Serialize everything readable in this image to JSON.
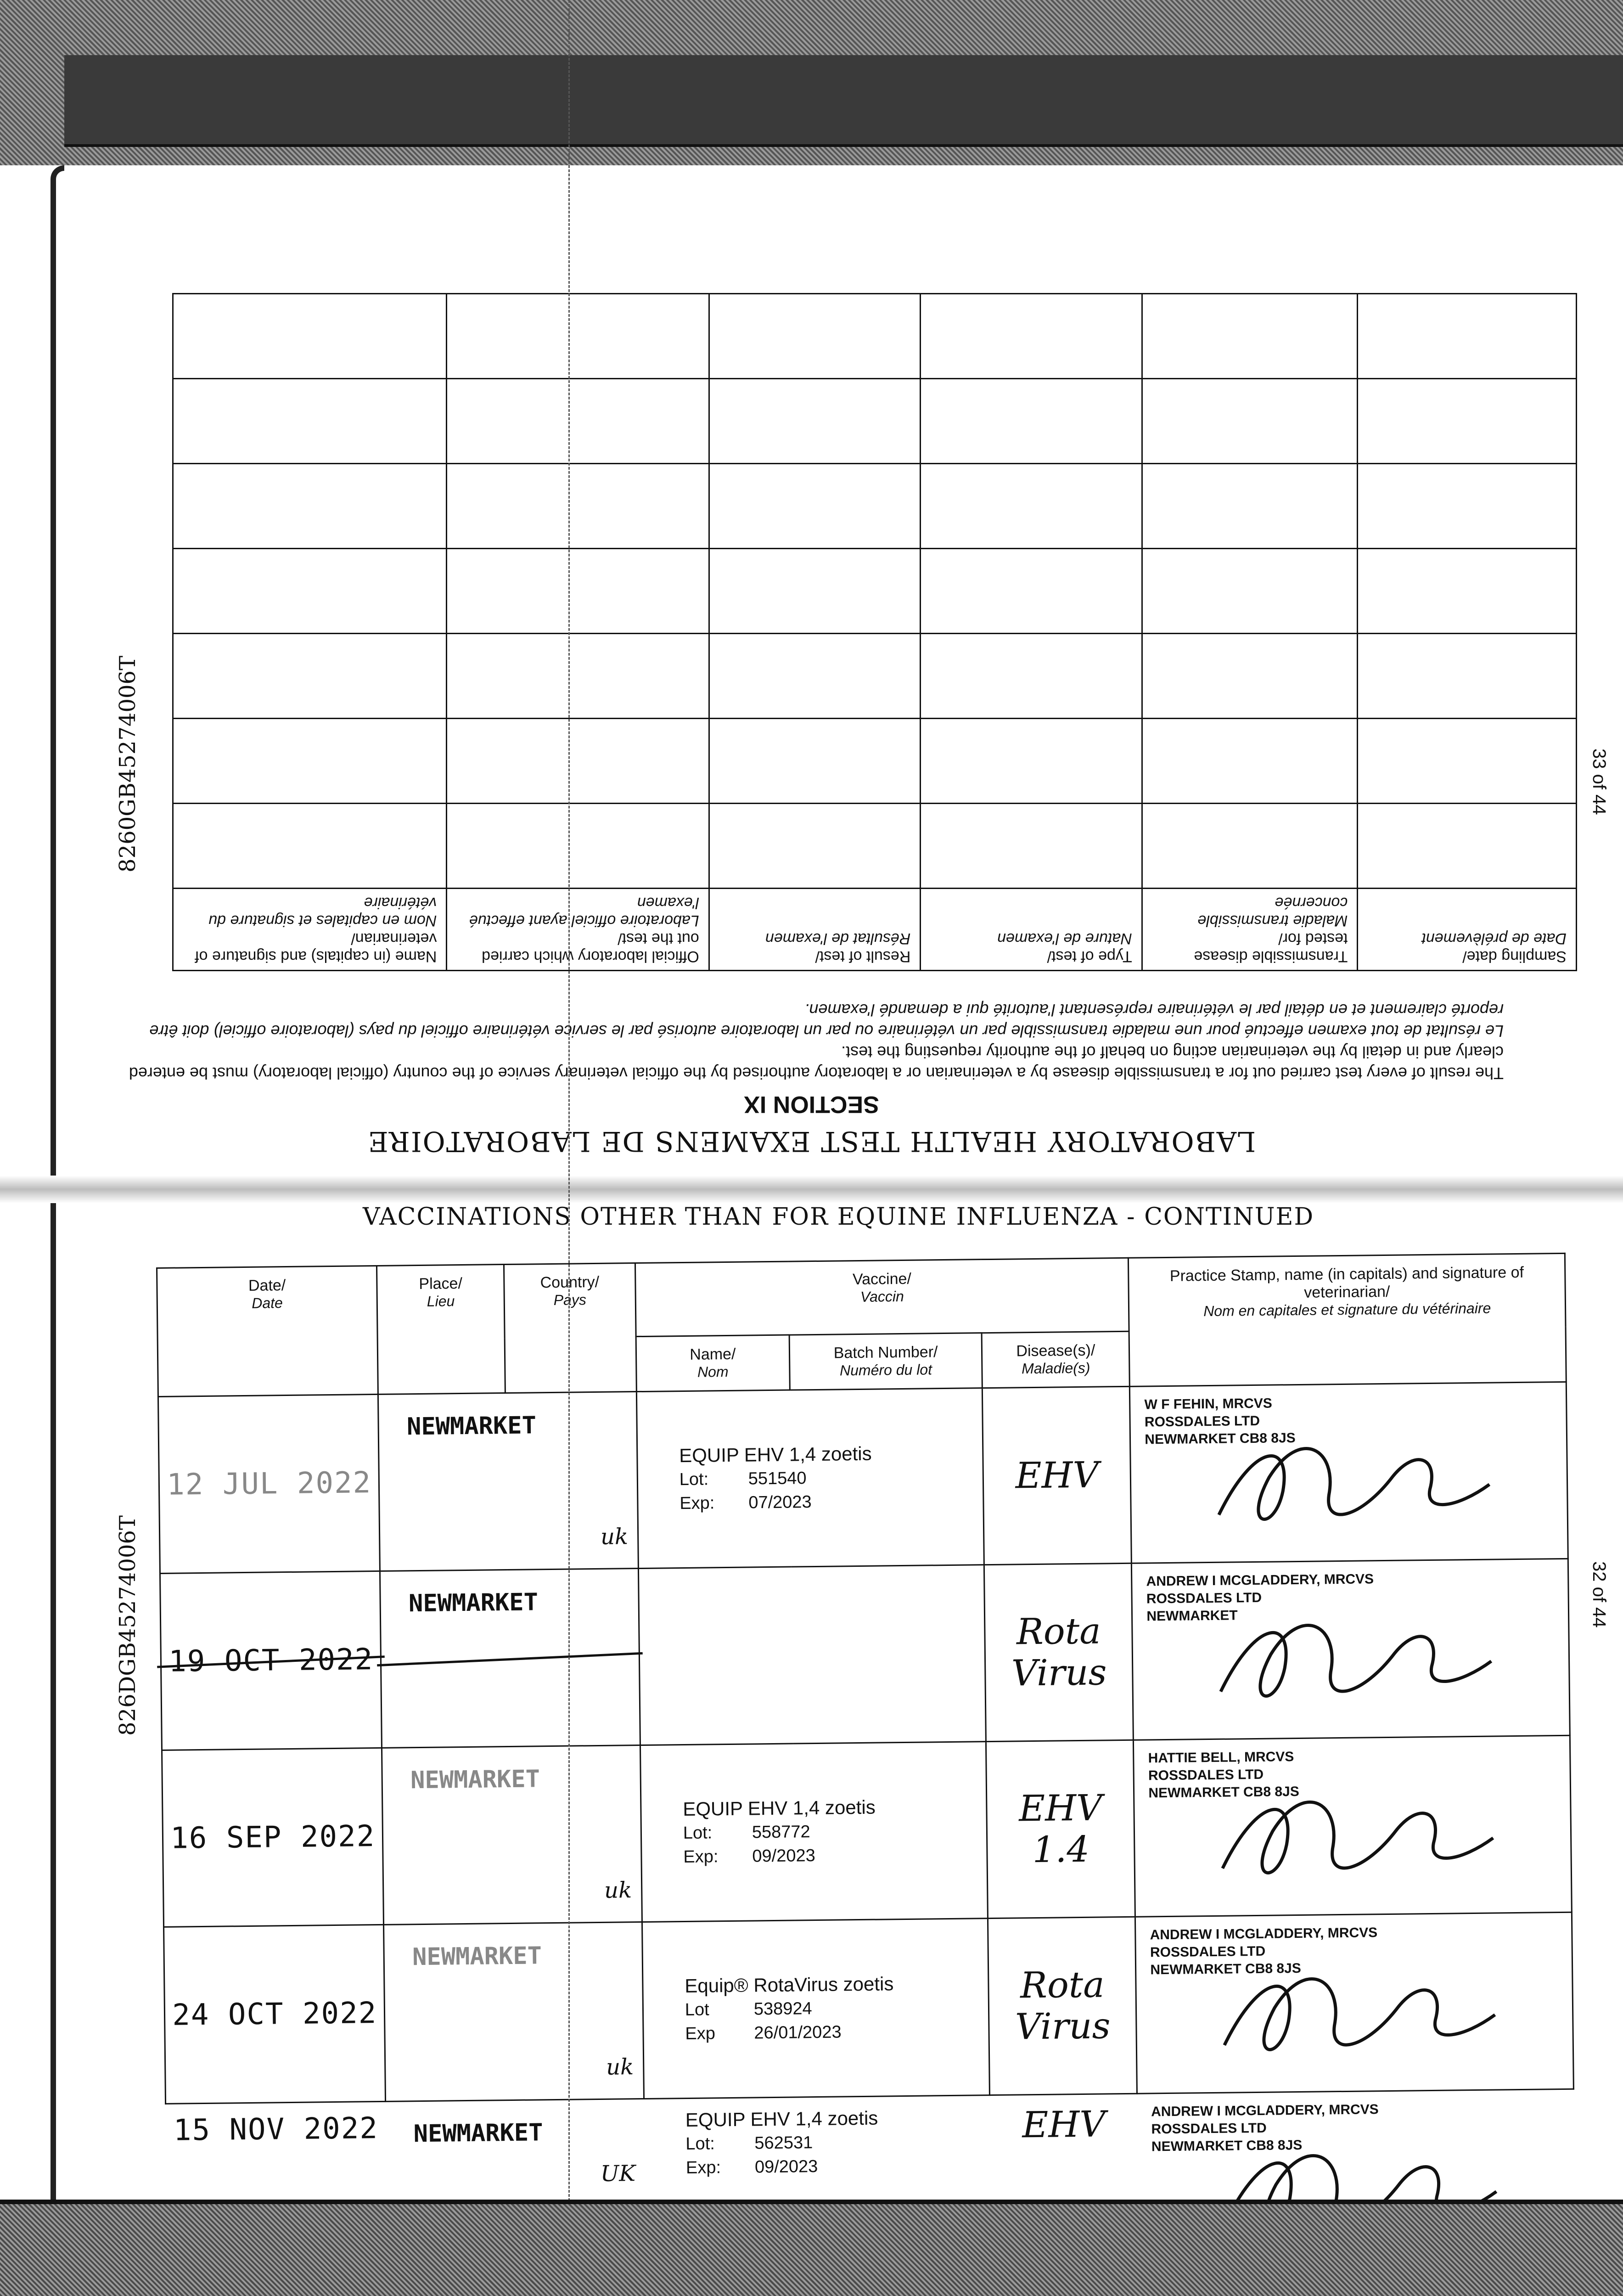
{
  "document_id_upper": "8260GB4527400​6T",
  "document_id_lower": "826DGB4527400​6T",
  "page_upper": "33 of 44",
  "page_lower": "32 of 44",
  "lab_section": {
    "title": "LABORATORY HEALTH TEST EXAMENS DE LABORATOIRE",
    "section": "SECTION IX",
    "intro_en": "The result of every test carried out for a transmissible disease by a veterinarian or a laboratory authorised by the official veterinary service of the country (official laboratory) must be entered clearly and in detail by the veterinarian acting on behalf of the authority requesting the test.",
    "intro_fr": "Le résultat de tout examen effectué pour une maladie transmissible par un vétérinaire ou par un laboratoire autorisé par le service vétérinaire officiel du pays (laboratoire officiel) doit être reporté clairement et en détail par le vétérinaire représentant l'autorité qui a demandé l'examen.",
    "columns": [
      {
        "en": "Sampling date/",
        "fr": "Date de prélèvement"
      },
      {
        "en": "Transmissible disease tested for/",
        "fr": "Maladie transmissible concernée"
      },
      {
        "en": "Type of test/",
        "fr": "Nature de l'examen"
      },
      {
        "en": "Result of test/",
        "fr": "Résultat de l'examen"
      },
      {
        "en": "Official laboratory which carried out the test/",
        "fr": "Laboratoire officiel ayant effectué l'examen"
      },
      {
        "en": "Name (in capitals) and signature of veterinarian/",
        "fr": "Nom en capitales et signature du vétérinaire"
      }
    ]
  },
  "vaccination_section": {
    "title": "VACCINATIONS OTHER THAN FOR EQUINE INFLUENZA - CONTINUED",
    "headers": {
      "date": {
        "en": "Date/",
        "fr": "Date"
      },
      "place": {
        "en": "Place/",
        "fr": "Lieu"
      },
      "country": {
        "en": "Country/",
        "fr": "Pays"
      },
      "vaccine": {
        "en": "Vaccine/",
        "fr": "Vaccin"
      },
      "name": {
        "en": "Name/",
        "fr": "Nom"
      },
      "batch": {
        "en": "Batch Number/",
        "fr": "Numéro du lot"
      },
      "disease": {
        "en": "Disease(s)/",
        "fr": "Maladie(s)"
      },
      "stamp": {
        "en": "Practice Stamp, name (in capitals) and signature of veterinarian/",
        "fr": "Nom en capitales et signature du vétérinaire"
      }
    },
    "rows": [
      {
        "date": "12 JUL 2022",
        "place": "NEWMARKET",
        "country": "uk",
        "vaccine": "EQUIP EHV 1,4 zoetis",
        "lot_label": "Lot:",
        "lot": "551540",
        "exp_label": "Exp:",
        "exp": "07/2023",
        "disease": "EHV",
        "stamp": [
          "W F FEHIN, MRCVS",
          "ROSSDALES LTD",
          "NEWMARKET CB8 8JS"
        ]
      },
      {
        "date": "19 OCT 2022",
        "place": "NEWMARKET",
        "country": "",
        "vaccine": "",
        "lot_label": "",
        "lot": "",
        "exp_label": "",
        "exp": "",
        "disease": "Rota Virus",
        "stamp": [
          "ANDREW I MCGLADDERY, MRCVS",
          "ROSSDALES LTD",
          "NEWMARKET"
        ],
        "struck_out": true
      },
      {
        "date": "16 SEP 2022",
        "place": "NEWMARKET",
        "country": "uk",
        "vaccine": "EQUIP EHV 1,4 zoetis",
        "lot_label": "Lot:",
        "lot": "558772",
        "exp_label": "Exp:",
        "exp": "09/2023",
        "disease": "EHV 1.4",
        "stamp": [
          "HATTIE BELL, MRCVS",
          "ROSSDALES LTD",
          "NEWMARKET CB8 8JS"
        ]
      },
      {
        "date": "24 OCT 2022",
        "place": "NEWMARKET",
        "country": "uk",
        "vaccine": "Equip® RotaVirus zoetis",
        "lot_label": "Lot",
        "lot": "538924",
        "exp_label": "Exp",
        "exp": "26/01/2023",
        "disease": "Rota Virus",
        "stamp": [
          "ANDREW I MCGLADDERY, MRCVS",
          "ROSSDALES LTD",
          "NEWMARKET CB8 8JS"
        ]
      },
      {
        "date": "15 NOV 2022",
        "place": "NEWMARKET",
        "country": "UK",
        "vaccine": "EQUIP EHV 1,4 zoetis",
        "lot_label": "Lot:",
        "lot": "562531",
        "exp_label": "Exp:",
        "exp": "09/2023",
        "disease": "EHV",
        "stamp": [
          "ANDREW I MCGLADDERY, MRCVS",
          "ROSSDALES LTD",
          "NEWMARKET CB8 8JS"
        ]
      }
    ]
  }
}
